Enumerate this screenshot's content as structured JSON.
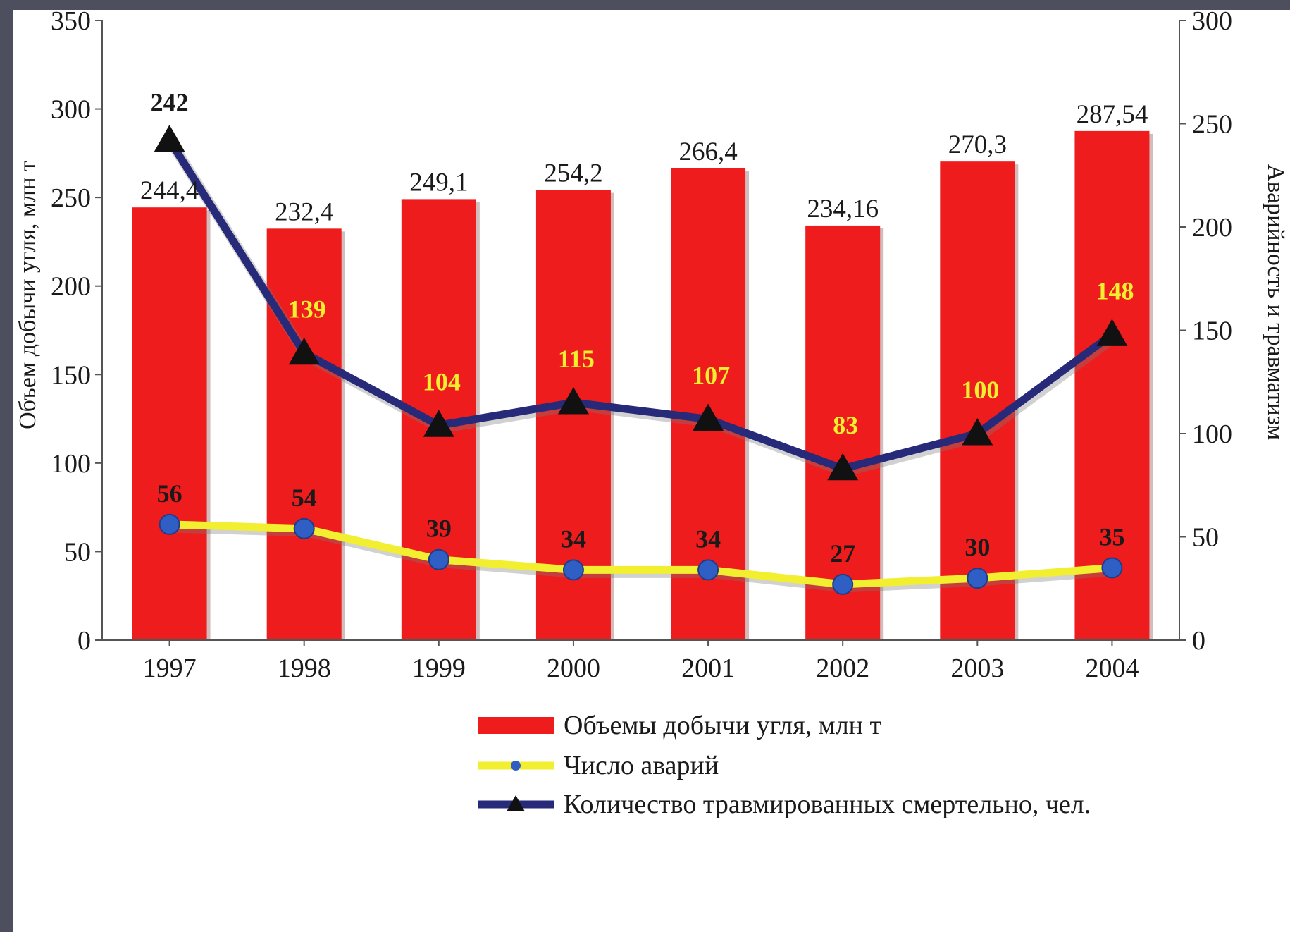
{
  "chart_data": {
    "type": "bar",
    "categories": [
      "1997",
      "1998",
      "1999",
      "2000",
      "2001",
      "2002",
      "2003",
      "2004"
    ],
    "series": [
      {
        "name": "Объемы добычи угля, млн  т",
        "type": "bar",
        "axis": "left",
        "values": [
          244.4,
          232.4,
          249.1,
          254.2,
          266.4,
          234.16,
          270.3,
          287.54
        ],
        "labels": [
          "244,4",
          "232,4",
          "249,1",
          "254,2",
          "266,4",
          "234,16",
          "270,3",
          "287,54"
        ],
        "color": "#ee1c1c"
      },
      {
        "name": "Число аварий",
        "type": "line",
        "axis": "right",
        "marker": "diamond",
        "values": [
          56,
          54,
          39,
          34,
          34,
          27,
          30,
          35
        ],
        "labels": [
          "56",
          "54",
          "39",
          "34",
          "34",
          "27",
          "30",
          "35"
        ],
        "color": "#f2ee30",
        "marker_color": "#2f5fc4",
        "label_color": "#1a1a1a"
      },
      {
        "name": "Количество травмированных смертельно, чел.",
        "type": "line",
        "axis": "right",
        "marker": "triangle",
        "values": [
          242,
          139,
          104,
          115,
          107,
          83,
          100,
          148
        ],
        "labels": [
          "242",
          "139",
          "104",
          "115",
          "107",
          "83",
          "100",
          "148"
        ],
        "color": "#262a78",
        "marker_color": "#111111",
        "label_colors": [
          "#1a1a1a",
          "#f2ee30",
          "#f2ee30",
          "#f2ee30",
          "#f2ee30",
          "#f2ee30",
          "#f2ee30",
          "#f2ee30"
        ]
      }
    ],
    "y_left": {
      "label": "Объем добычи угля, млн  т",
      "ylim": [
        0,
        350
      ],
      "ticks": [
        "0",
        "50",
        "100",
        "150",
        "200",
        "250",
        "300",
        "350"
      ]
    },
    "y_right": {
      "label": "Аварийность и травматизм",
      "ylim": [
        0,
        300
      ],
      "ticks": [
        "0",
        "50",
        "100",
        "150",
        "200",
        "250",
        "300"
      ]
    },
    "grid": false,
    "legend_position": "bottom"
  }
}
